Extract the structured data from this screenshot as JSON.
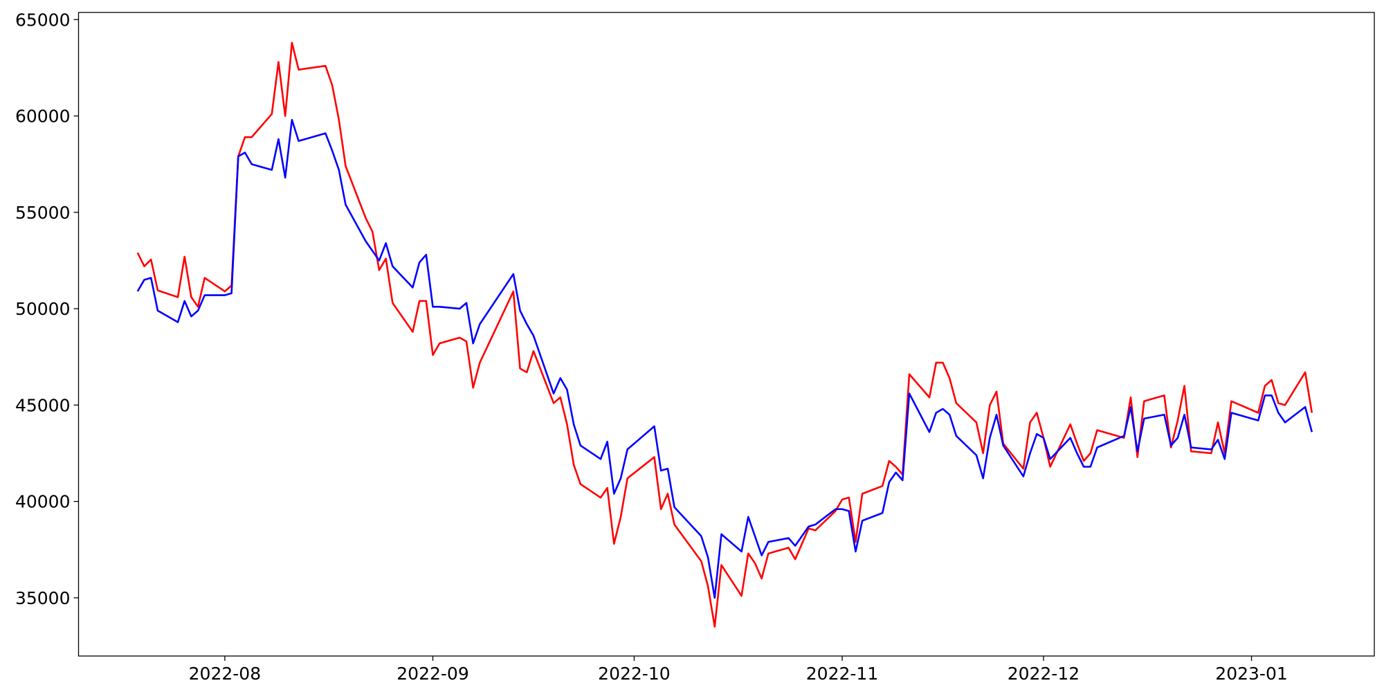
{
  "chart_data": {
    "type": "line",
    "x": [
      19192,
      19193,
      19194,
      19195,
      19198,
      19199,
      19200,
      19201,
      19202,
      19205,
      19206,
      19207,
      19208,
      19209,
      19212,
      19213,
      19214,
      19215,
      19216,
      19220,
      19221,
      19222,
      19223,
      19226,
      19227,
      19228,
      19229,
      19230,
      19233,
      19234,
      19235,
      19236,
      19237,
      19240,
      19241,
      19242,
      19243,
      19248,
      19249,
      19250,
      19251,
      19254,
      19255,
      19256,
      19257,
      19258,
      19261,
      19262,
      19263,
      19264,
      19265,
      19269,
      19270,
      19271,
      19272,
      19276,
      19277,
      19278,
      19279,
      19282,
      19283,
      19284,
      19285,
      19286,
      19289,
      19290,
      19292,
      19293,
      19296,
      19297,
      19298,
      19299,
      19300,
      19303,
      19304,
      19305,
      19306,
      19307,
      19310,
      19311,
      19312,
      19313,
      19314,
      19317,
      19318,
      19319,
      19320,
      19321,
      19324,
      19325,
      19326,
      19327,
      19328,
      19331,
      19332,
      19333,
      19334,
      19335,
      19339,
      19340,
      19341,
      19342,
      19345,
      19346,
      19347,
      19348,
      19349,
      19352,
      19353,
      19354,
      19355,
      19359,
      19360,
      19361,
      19362,
      19363,
      19366,
      19367
    ],
    "series": [
      {
        "color": "#ff0000",
        "values": [
          52900,
          52200,
          52550,
          50950,
          50600,
          52700,
          50600,
          50100,
          51600,
          50900,
          51200,
          57900,
          58900,
          58900,
          60100,
          62800,
          60000,
          63800,
          62400,
          62600,
          61600,
          59800,
          57400,
          54700,
          54000,
          52000,
          52600,
          50300,
          48800,
          50400,
          50400,
          47600,
          48200,
          48500,
          48300,
          45900,
          47200,
          50900,
          46900,
          46700,
          47800,
          45100,
          45400,
          44000,
          41900,
          40900,
          40200,
          40700,
          37800,
          39200,
          41200,
          42300,
          39600,
          40400,
          38800,
          36900,
          35600,
          33500,
          36700,
          35100,
          37300,
          36800,
          36000,
          37300,
          37600,
          37000,
          38600,
          38500,
          39500,
          40100,
          40200,
          37900,
          40400,
          40800,
          42100,
          41800,
          41400,
          46600,
          45400,
          47200,
          47200,
          46400,
          45100,
          44100,
          42500,
          45000,
          45700,
          43000,
          41700,
          44100,
          44600,
          43300,
          41800,
          44000,
          43000,
          42100,
          42500,
          43700,
          43300,
          45400,
          42300,
          45200,
          45500,
          42800,
          44200,
          46000,
          42600,
          42500,
          44100,
          42500,
          45200,
          44600,
          46000,
          46300,
          45100,
          45000,
          46700,
          44600
        ]
      },
      {
        "color": "#0000ff",
        "values": [
          50900,
          51500,
          51600,
          49900,
          49300,
          50400,
          49600,
          49900,
          50700,
          50700,
          50800,
          57900,
          58100,
          57500,
          57200,
          58800,
          56800,
          59800,
          58700,
          59100,
          58200,
          57200,
          55400,
          53500,
          53000,
          52500,
          53400,
          52200,
          51100,
          52400,
          52800,
          50100,
          50100,
          50000,
          50300,
          48200,
          49200,
          51800,
          49900,
          49200,
          48600,
          45600,
          46400,
          45800,
          44000,
          42900,
          42200,
          43100,
          40400,
          41200,
          42700,
          43900,
          41600,
          41700,
          39700,
          38200,
          37100,
          35000,
          38300,
          37400,
          39200,
          38200,
          37200,
          37900,
          38100,
          37700,
          38700,
          38800,
          39600,
          39600,
          39500,
          37400,
          39000,
          39400,
          41000,
          41500,
          41100,
          45600,
          43600,
          44600,
          44800,
          44500,
          43400,
          42400,
          41200,
          43300,
          44500,
          42900,
          41300,
          42500,
          43500,
          43300,
          42200,
          43300,
          42500,
          41800,
          41800,
          42800,
          43400,
          44900,
          42600,
          44300,
          44500,
          42900,
          43300,
          44500,
          42800,
          42700,
          43200,
          42200,
          44600,
          44200,
          45500,
          45500,
          44600,
          44100,
          44900,
          43600
        ]
      }
    ],
    "xlim": [
      19183.2,
      19376.3
    ],
    "xticks": [
      {
        "value": 19205,
        "label": "2022-08"
      },
      {
        "value": 19236,
        "label": "2022-09"
      },
      {
        "value": 19266,
        "label": "2022-10"
      },
      {
        "value": 19297,
        "label": "2022-11"
      },
      {
        "value": 19327,
        "label": "2022-12"
      },
      {
        "value": 19358,
        "label": "2023-01"
      }
    ],
    "ylim": [
      31980,
      65370
    ],
    "yticks": [
      35000,
      40000,
      45000,
      50000,
      55000,
      60000,
      65000
    ],
    "grid": false
  }
}
